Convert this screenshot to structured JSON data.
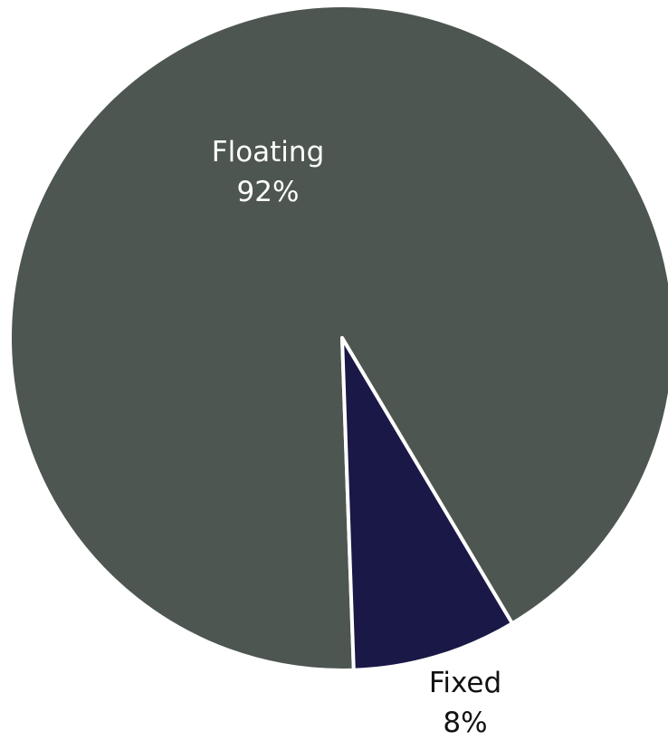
{
  "chart_data": {
    "type": "pie",
    "slices": [
      {
        "name": "Floating",
        "value": 92,
        "value_label": "92%",
        "color": "#4d5650",
        "label_color": "#ffffff"
      },
      {
        "name": "Fixed",
        "value": 8,
        "value_label": "8%",
        "color": "#1a1846",
        "label_color": "#111111"
      }
    ],
    "slice_border_color": "#ffffff"
  }
}
